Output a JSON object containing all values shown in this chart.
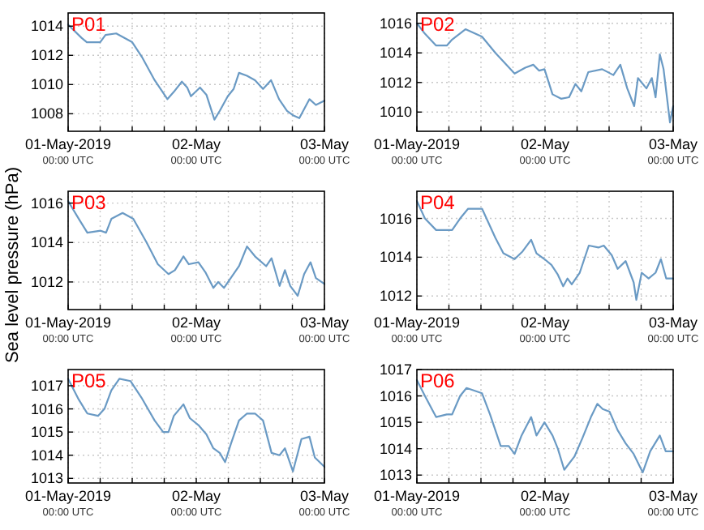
{
  "chart_data": [
    {
      "type": "line",
      "title": "P01",
      "ylabel": "Sea level pressure (hPa)",
      "xlim": [
        "2019-05-01T00:00",
        "2019-05-03T00:00"
      ],
      "xticks": [
        {
          "value": "2019-05-01T00:00",
          "label": "01-May-2019\n00:00 UTC"
        },
        {
          "value": "2019-05-01T06:00",
          "label": null
        },
        {
          "value": "2019-05-01T12:00",
          "label": null
        },
        {
          "value": "2019-05-01T18:00",
          "label": null
        },
        {
          "value": "2019-05-02T00:00",
          "label": "02-May\n00:00 UTC"
        },
        {
          "value": "2019-05-02T06:00",
          "label": null
        },
        {
          "value": "2019-05-02T12:00",
          "label": null
        },
        {
          "value": "2019-05-02T18:00",
          "label": null
        },
        {
          "value": "2019-05-03T00:00",
          "label": "03-May\n00:00 UTC"
        }
      ],
      "ylim": [
        1006.8,
        1014.9
      ],
      "yticks": [
        1008,
        1010,
        1012,
        1014
      ],
      "grid": true,
      "line_style": "solid",
      "series": [
        {
          "color": "#6a9ac4",
          "x": [
            "2019-05-01T00:00",
            "2019-05-01T02:30",
            "2019-05-01T03:30",
            "2019-05-01T06:00",
            "2019-05-01T07:00",
            "2019-05-01T09:00",
            "2019-05-01T12:00",
            "2019-05-01T13:48",
            "2019-05-01T16:12",
            "2019-05-01T18:36",
            "2019-05-01T19:48",
            "2019-05-01T21:18",
            "2019-05-01T22:18",
            "2019-05-01T23:00",
            "2019-05-02T00:42",
            "2019-05-02T01:54",
            "2019-05-02T03:24",
            "2019-05-02T04:24",
            "2019-05-02T05:54",
            "2019-05-02T07:00",
            "2019-05-02T08:00",
            "2019-05-02T09:30",
            "2019-05-02T11:00",
            "2019-05-02T12:30",
            "2019-05-02T14:00",
            "2019-05-02T15:30",
            "2019-05-02T17:00",
            "2019-05-02T18:06",
            "2019-05-02T19:18",
            "2019-05-02T21:12",
            "2019-05-02T22:24",
            "2019-05-03T00:00"
          ],
          "values": [
            1014.1,
            1013.2,
            1012.9,
            1012.9,
            1013.4,
            1013.5,
            1012.9,
            1011.9,
            1010.3,
            1009.0,
            1009.5,
            1010.2,
            1009.8,
            1009.2,
            1009.8,
            1009.3,
            1007.6,
            1008.2,
            1009.2,
            1009.7,
            1010.8,
            1010.6,
            1010.3,
            1009.7,
            1010.3,
            1009.0,
            1008.2,
            1007.9,
            1007.7,
            1009.0,
            1008.6,
            1008.9
          ]
        }
      ]
    },
    {
      "type": "line",
      "title": "P02",
      "xlim": [
        "2019-05-01T00:00",
        "2019-05-03T00:00"
      ],
      "xticks": [
        {
          "value": "2019-05-01T00:00",
          "label": "01-May-2019\n00:00 UTC"
        },
        {
          "value": "2019-05-01T06:00",
          "label": null
        },
        {
          "value": "2019-05-01T12:00",
          "label": null
        },
        {
          "value": "2019-05-01T18:00",
          "label": null
        },
        {
          "value": "2019-05-02T00:00",
          "label": "02-May\n00:00 UTC"
        },
        {
          "value": "2019-05-02T06:00",
          "label": null
        },
        {
          "value": "2019-05-02T12:00",
          "label": null
        },
        {
          "value": "2019-05-02T18:00",
          "label": null
        },
        {
          "value": "2019-05-03T00:00",
          "label": "03-May\n00:00 UTC"
        }
      ],
      "ylim": [
        1008.7,
        1016.7
      ],
      "yticks": [
        1010,
        1012,
        1014,
        1016
      ],
      "grid": true,
      "line_style": "solid",
      "series": [
        {
          "color": "#6a9ac4",
          "x": [
            "2019-05-01T00:00",
            "2019-05-01T01:30",
            "2019-05-01T03:36",
            "2019-05-01T05:36",
            "2019-05-01T06:36",
            "2019-05-01T09:06",
            "2019-05-01T12:12",
            "2019-05-01T14:42",
            "2019-05-01T18:18",
            "2019-05-01T20:18",
            "2019-05-01T21:48",
            "2019-05-01T22:54",
            "2019-05-01T23:54",
            "2019-05-02T01:24",
            "2019-05-02T03:00",
            "2019-05-02T04:30",
            "2019-05-02T05:42",
            "2019-05-02T06:48",
            "2019-05-02T08:06",
            "2019-05-02T10:42",
            "2019-05-02T12:48",
            "2019-05-02T14:06",
            "2019-05-02T15:24",
            "2019-05-02T16:42",
            "2019-05-02T17:24",
            "2019-05-02T19:00",
            "2019-05-02T20:00",
            "2019-05-02T20:42",
            "2019-05-02T21:30",
            "2019-05-02T22:12",
            "2019-05-02T23:24",
            "2019-05-03T00:00"
          ],
          "values": [
            1016.0,
            1015.3,
            1014.5,
            1014.5,
            1014.9,
            1015.6,
            1015.1,
            1014.0,
            1012.6,
            1013.0,
            1013.2,
            1012.8,
            1012.9,
            1011.2,
            1010.9,
            1011.0,
            1011.9,
            1011.4,
            1012.7,
            1012.9,
            1012.5,
            1013.2,
            1011.6,
            1010.4,
            1012.3,
            1011.6,
            1012.3,
            1011.0,
            1013.9,
            1012.9,
            1009.3,
            1010.4
          ]
        }
      ]
    },
    {
      "type": "line",
      "title": "P03",
      "xlim": [
        "2019-05-01T00:00",
        "2019-05-03T00:00"
      ],
      "xticks": [
        {
          "value": "2019-05-01T00:00",
          "label": "01-May-2019\n00:00 UTC"
        },
        {
          "value": "2019-05-01T06:00",
          "label": null
        },
        {
          "value": "2019-05-01T12:00",
          "label": null
        },
        {
          "value": "2019-05-01T18:00",
          "label": null
        },
        {
          "value": "2019-05-02T00:00",
          "label": "02-May\n00:00 UTC"
        },
        {
          "value": "2019-05-02T06:00",
          "label": null
        },
        {
          "value": "2019-05-02T12:00",
          "label": null
        },
        {
          "value": "2019-05-02T18:00",
          "label": null
        },
        {
          "value": "2019-05-03T00:00",
          "label": "03-May\n00:00 UTC"
        }
      ],
      "ylim": [
        1010.6,
        1016.6
      ],
      "yticks": [
        1012,
        1014,
        1016
      ],
      "grid": true,
      "line_style": "solid",
      "series": [
        {
          "color": "#6a9ac4",
          "x": [
            "2019-05-01T00:00",
            "2019-05-01T02:00",
            "2019-05-01T03:36",
            "2019-05-01T06:06",
            "2019-05-01T07:06",
            "2019-05-01T08:06",
            "2019-05-01T10:12",
            "2019-05-01T12:12",
            "2019-05-01T14:42",
            "2019-05-01T16:48",
            "2019-05-01T18:48",
            "2019-05-01T20:00",
            "2019-05-01T21:36",
            "2019-05-01T22:36",
            "2019-05-02T00:24",
            "2019-05-02T01:42",
            "2019-05-02T03:12",
            "2019-05-02T04:06",
            "2019-05-02T05:12",
            "2019-05-02T08:00",
            "2019-05-02T09:30",
            "2019-05-02T11:00",
            "2019-05-02T13:06",
            "2019-05-02T14:06",
            "2019-05-02T15:36",
            "2019-05-02T16:36",
            "2019-05-02T17:36",
            "2019-05-02T19:00",
            "2019-05-02T20:12",
            "2019-05-02T21:24",
            "2019-05-02T22:24",
            "2019-05-03T00:00"
          ],
          "values": [
            1016.1,
            1015.2,
            1014.5,
            1014.6,
            1014.5,
            1015.2,
            1015.5,
            1015.2,
            1014.0,
            1012.9,
            1012.4,
            1012.6,
            1013.3,
            1012.9,
            1013.0,
            1012.5,
            1011.7,
            1012.0,
            1011.7,
            1012.8,
            1013.8,
            1013.3,
            1012.8,
            1013.2,
            1011.8,
            1012.6,
            1011.8,
            1011.3,
            1012.4,
            1013.0,
            1012.2,
            1011.9
          ]
        }
      ]
    },
    {
      "type": "line",
      "title": "P04",
      "xlim": [
        "2019-05-01T00:00",
        "2019-05-03T00:00"
      ],
      "xticks": [
        {
          "value": "2019-05-01T00:00",
          "label": "01-May-2019\n00:00 UTC"
        },
        {
          "value": "2019-05-01T06:00",
          "label": null
        },
        {
          "value": "2019-05-01T12:00",
          "label": null
        },
        {
          "value": "2019-05-01T18:00",
          "label": null
        },
        {
          "value": "2019-05-02T00:00",
          "label": "02-May\n00:00 UTC"
        },
        {
          "value": "2019-05-02T06:00",
          "label": null
        },
        {
          "value": "2019-05-02T12:00",
          "label": null
        },
        {
          "value": "2019-05-02T18:00",
          "label": null
        },
        {
          "value": "2019-05-03T00:00",
          "label": "03-May\n00:00 UTC"
        }
      ],
      "ylim": [
        1011.3,
        1017.4
      ],
      "yticks": [
        1012,
        1014,
        1016
      ],
      "grid": true,
      "line_style": "solid",
      "series": [
        {
          "color": "#6a9ac4",
          "x": [
            "2019-05-01T00:00",
            "2019-05-01T01:30",
            "2019-05-01T03:36",
            "2019-05-01T06:36",
            "2019-05-01T08:06",
            "2019-05-01T09:36",
            "2019-05-01T12:12",
            "2019-05-01T14:42",
            "2019-05-01T16:12",
            "2019-05-01T18:18",
            "2019-05-01T19:48",
            "2019-05-01T21:24",
            "2019-05-01T22:24",
            "2019-05-01T23:54",
            "2019-05-02T01:12",
            "2019-05-02T02:24",
            "2019-05-02T03:24",
            "2019-05-02T04:12",
            "2019-05-02T05:00",
            "2019-05-02T06:30",
            "2019-05-02T08:12",
            "2019-05-02T10:00",
            "2019-05-02T11:00",
            "2019-05-02T12:30",
            "2019-05-02T13:36",
            "2019-05-02T15:06",
            "2019-05-02T16:36",
            "2019-05-02T17:06",
            "2019-05-02T18:06",
            "2019-05-02T19:24",
            "2019-05-02T20:42",
            "2019-05-02T21:42",
            "2019-05-02T22:42",
            "2019-05-03T00:00"
          ],
          "values": [
            1016.9,
            1016.0,
            1015.4,
            1015.4,
            1016.0,
            1016.5,
            1016.5,
            1015.0,
            1014.2,
            1013.9,
            1014.3,
            1014.9,
            1014.2,
            1013.9,
            1013.6,
            1013.1,
            1012.5,
            1012.9,
            1012.6,
            1013.2,
            1014.6,
            1014.5,
            1014.6,
            1014.1,
            1013.4,
            1013.8,
            1012.7,
            1011.8,
            1013.2,
            1012.9,
            1013.2,
            1013.9,
            1012.9,
            1012.9
          ]
        }
      ]
    },
    {
      "type": "line",
      "title": "P05",
      "xlim": [
        "2019-05-01T00:00",
        "2019-05-03T00:00"
      ],
      "xticks": [
        {
          "value": "2019-05-01T00:00",
          "label": "01-May-2019\n00:00 UTC"
        },
        {
          "value": "2019-05-01T06:00",
          "label": null
        },
        {
          "value": "2019-05-01T12:00",
          "label": null
        },
        {
          "value": "2019-05-01T18:00",
          "label": null
        },
        {
          "value": "2019-05-02T00:00",
          "label": "02-May\n00:00 UTC"
        },
        {
          "value": "2019-05-02T06:00",
          "label": null
        },
        {
          "value": "2019-05-02T12:00",
          "label": null
        },
        {
          "value": "2019-05-02T18:00",
          "label": null
        },
        {
          "value": "2019-05-03T00:00",
          "label": "03-May\n00:00 UTC"
        }
      ],
      "ylim": [
        1012.8,
        1017.7
      ],
      "yticks": [
        1013,
        1014,
        1015,
        1016,
        1017
      ],
      "grid": true,
      "line_style": "solid",
      "series": [
        {
          "color": "#6a9ac4",
          "x": [
            "2019-05-01T00:00",
            "2019-05-01T02:00",
            "2019-05-01T03:36",
            "2019-05-01T05:36",
            "2019-05-01T06:48",
            "2019-05-01T08:06",
            "2019-05-01T09:36",
            "2019-05-01T11:42",
            "2019-05-01T13:42",
            "2019-05-01T16:12",
            "2019-05-01T17:48",
            "2019-05-01T18:48",
            "2019-05-01T19:48",
            "2019-05-01T21:36",
            "2019-05-01T22:48",
            "2019-05-02T00:24",
            "2019-05-02T01:54",
            "2019-05-02T03:12",
            "2019-05-02T04:24",
            "2019-05-02T05:24",
            "2019-05-02T06:30",
            "2019-05-02T08:00",
            "2019-05-02T09:30",
            "2019-05-02T11:00",
            "2019-05-02T12:30",
            "2019-05-02T14:06",
            "2019-05-02T15:36",
            "2019-05-02T16:36",
            "2019-05-02T18:06",
            "2019-05-02T19:42",
            "2019-05-02T21:12",
            "2019-05-02T22:12",
            "2019-05-03T00:00"
          ],
          "values": [
            1017.3,
            1016.4,
            1015.8,
            1015.7,
            1016.0,
            1016.8,
            1017.3,
            1017.2,
            1016.5,
            1015.5,
            1015.0,
            1015.0,
            1015.7,
            1016.2,
            1015.6,
            1015.3,
            1014.9,
            1014.3,
            1014.1,
            1013.7,
            1014.5,
            1015.5,
            1015.8,
            1015.8,
            1015.5,
            1014.1,
            1014.0,
            1014.3,
            1013.3,
            1014.7,
            1014.8,
            1013.9,
            1013.5
          ]
        }
      ]
    },
    {
      "type": "line",
      "title": "P06",
      "xlim": [
        "2019-05-01T00:00",
        "2019-05-03T00:00"
      ],
      "xticks": [
        {
          "value": "2019-05-01T00:00",
          "label": "01-May-2019\n00:00 UTC"
        },
        {
          "value": "2019-05-01T06:00",
          "label": null
        },
        {
          "value": "2019-05-01T12:00",
          "label": null
        },
        {
          "value": "2019-05-01T18:00",
          "label": null
        },
        {
          "value": "2019-05-02T00:00",
          "label": "02-May\n00:00 UTC"
        },
        {
          "value": "2019-05-02T06:00",
          "label": null
        },
        {
          "value": "2019-05-02T12:00",
          "label": null
        },
        {
          "value": "2019-05-02T18:00",
          "label": null
        },
        {
          "value": "2019-05-03T00:00",
          "label": "03-May\n00:00 UTC"
        }
      ],
      "ylim": [
        1012.7,
        1017
      ],
      "yticks": [
        1013,
        1014,
        1015,
        1016,
        1017
      ],
      "grid": true,
      "line_style": "solid",
      "series": [
        {
          "color": "#6a9ac4",
          "x": [
            "2019-05-01T00:00",
            "2019-05-01T01:30",
            "2019-05-01T03:36",
            "2019-05-01T05:36",
            "2019-05-01T06:36",
            "2019-05-01T08:06",
            "2019-05-01T09:18",
            "2019-05-01T12:12",
            "2019-05-01T13:42",
            "2019-05-01T15:42",
            "2019-05-01T17:12",
            "2019-05-01T18:18",
            "2019-05-01T19:36",
            "2019-05-01T21:24",
            "2019-05-01T22:24",
            "2019-05-01T23:54",
            "2019-05-02T01:24",
            "2019-05-02T02:24",
            "2019-05-02T03:36",
            "2019-05-02T05:30",
            "2019-05-02T07:00",
            "2019-05-02T08:36",
            "2019-05-02T09:48",
            "2019-05-02T10:48",
            "2019-05-02T12:06",
            "2019-05-02T13:36",
            "2019-05-02T15:06",
            "2019-05-02T16:36",
            "2019-05-02T18:18",
            "2019-05-02T19:42",
            "2019-05-02T21:30",
            "2019-05-02T22:36",
            "2019-05-03T00:00"
          ],
          "values": [
            1016.6,
            1016.0,
            1015.2,
            1015.3,
            1015.3,
            1016.0,
            1016.3,
            1016.1,
            1015.3,
            1014.1,
            1014.1,
            1013.8,
            1014.5,
            1015.2,
            1014.5,
            1015.0,
            1014.5,
            1014.0,
            1013.2,
            1013.7,
            1014.4,
            1015.2,
            1015.7,
            1015.5,
            1015.4,
            1014.7,
            1014.2,
            1013.8,
            1013.1,
            1013.9,
            1014.5,
            1013.9,
            1013.9
          ]
        }
      ]
    }
  ]
}
